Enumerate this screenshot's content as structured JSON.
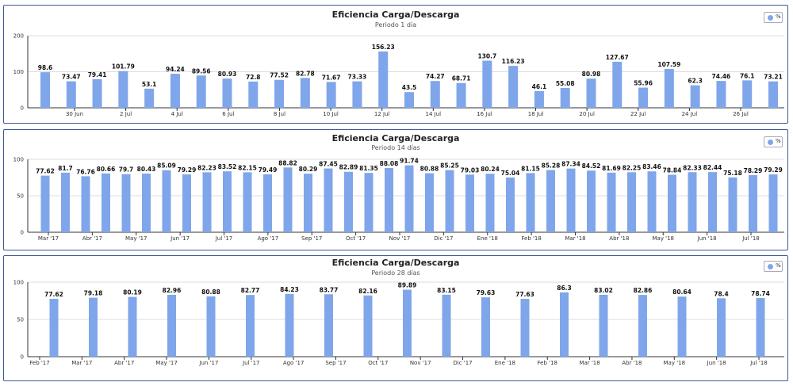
{
  "colors": {
    "bar": "#7fa6ea",
    "axis": "#333333",
    "grid": "#dddddd",
    "panel_border": "#3b5998"
  },
  "chart_data": [
    {
      "type": "bar",
      "title": "Eficiencia Carga/Descarga",
      "subtitle": "Periodo 1 día",
      "legend": [
        "%"
      ],
      "legend_position": "top-right",
      "ylim": [
        0,
        200
      ],
      "yticks": [
        0,
        100,
        200
      ],
      "xticks": [
        "30 Jun",
        "2 Jul",
        "4 Jul",
        "6 Jul",
        "8 Jul",
        "10 Jul",
        "12 Jul",
        "14 Jul",
        "16 Jul",
        "18 Jul",
        "20 Jul",
        "22 Jul",
        "24 Jul",
        "26 Jul"
      ],
      "values": [
        98.6,
        73.47,
        79.41,
        101.79,
        53.1,
        94.24,
        89.56,
        80.93,
        72.8,
        77.52,
        82.78,
        71.67,
        73.33,
        156.23,
        43.5,
        74.27,
        68.71,
        130.7,
        116.23,
        46.1,
        55.08,
        80.98,
        127.67,
        55.96,
        107.59,
        62.3,
        74.46,
        76.1,
        73.21
      ],
      "labels": [
        "98.6",
        "73.47",
        "79.41",
        "101.79",
        "53.1",
        "94.24",
        "89.56",
        "80.93",
        "72.8",
        "77.52",
        "82.78",
        "71.67",
        "73.33",
        "156.23",
        "43.5",
        "74.27",
        "68.71",
        "130.7",
        "116.23",
        "46.1",
        "55.08",
        "80.98",
        "127.67",
        "55.96",
        "107.59",
        "62.3",
        "74.46",
        "76.1",
        "73.21"
      ]
    },
    {
      "type": "bar",
      "title": "Eficiencia Carga/Descarga",
      "subtitle": "Periodo 14 días",
      "legend": [
        "%"
      ],
      "legend_position": "top-right",
      "ylim": [
        0,
        100
      ],
      "yticks": [
        0,
        50,
        100
      ],
      "xticks": [
        "Mar '17",
        "Abr '17",
        "May '17",
        "Jun '17",
        "Jul '17",
        "Ago '17",
        "Sep '17",
        "Oct '17",
        "Nov '17",
        "Dic '17",
        "Ene '18",
        "Feb '18",
        "Mar '18",
        "Abr '18",
        "May '18",
        "Jun '18",
        "Jul '18"
      ],
      "values": [
        77.62,
        81.7,
        76.76,
        80.66,
        79.7,
        80.43,
        85.09,
        79.29,
        82.23,
        83.52,
        82.15,
        79.49,
        88.82,
        80.29,
        87.45,
        82.89,
        81.35,
        88.08,
        91.74,
        80.88,
        85.25,
        79.03,
        80.24,
        75.04,
        81.15,
        85.28,
        87.34,
        84.52,
        81.69,
        82.25,
        83.46,
        78.84,
        82.33,
        82.44,
        75.18,
        78.29,
        79.29
      ],
      "labels": [
        "77.62",
        "81.7",
        "76.76",
        "80.66",
        "79.7",
        "80.43",
        "85.09",
        "79.29",
        "82.23",
        "83.52",
        "82.15",
        "79.49",
        "88.82",
        "80.29",
        "87.45",
        "82.89",
        "81.35",
        "88.08",
        "91.74",
        "80.88",
        "85.25",
        "79.03",
        "80.24",
        "75.04",
        "81.15",
        "85.28",
        "87.34",
        "84.52",
        "81.69",
        "82.25",
        "83.46",
        "78.84",
        "82.33",
        "82.44",
        "75.18",
        "78.29",
        "79.29"
      ]
    },
    {
      "type": "bar",
      "title": "Eficiencia Carga/Descarga",
      "subtitle": "Periodo 28 días",
      "legend": [
        "%"
      ],
      "legend_position": "top-right",
      "ylim": [
        0,
        100
      ],
      "yticks": [
        0,
        50,
        100
      ],
      "xticks": [
        "Feb '17",
        "Mar '17",
        "Abr '17",
        "May '17",
        "Jun '17",
        "Jul '17",
        "Ago '17",
        "Sep '17",
        "Oct '17",
        "Nov '17",
        "Dic '17",
        "Ene '18",
        "Feb '18",
        "Mar '18",
        "Abr '18",
        "May '18",
        "Jun '18",
        "Jul '18"
      ],
      "values": [
        77.62,
        79.18,
        80.19,
        82.96,
        80.88,
        82.77,
        84.23,
        83.77,
        82.16,
        89.89,
        83.15,
        79.63,
        77.63,
        86.3,
        83.02,
        82.86,
        80.64,
        78.4,
        78.74
      ],
      "labels": [
        "77.62",
        "79.18",
        "80.19",
        "82.96",
        "80.88",
        "82.77",
        "84.23",
        "83.77",
        "82.16",
        "89.89",
        "83.15",
        "79.63",
        "77.63",
        "86.3",
        "83.02",
        "82.86",
        "80.64",
        "78.4",
        "78.74"
      ]
    }
  ]
}
